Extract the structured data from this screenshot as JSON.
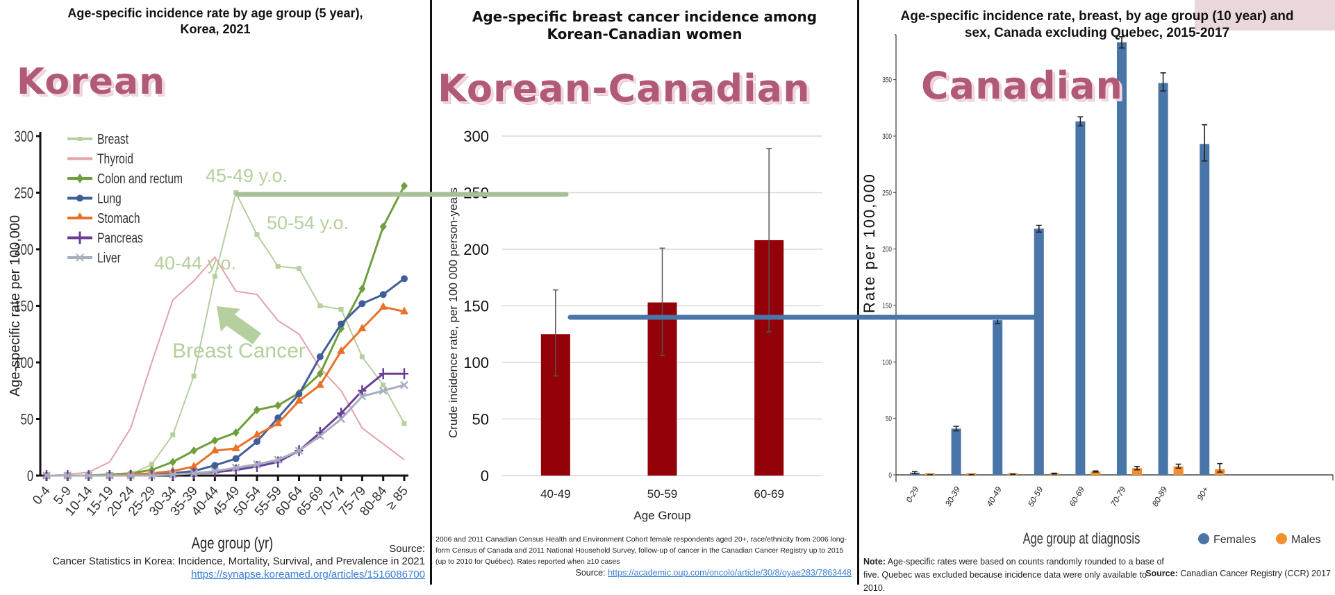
{
  "panels": {
    "korean": {
      "title_line1": "Age-specific incidence rate by age group (5 year),",
      "title_line2": "Korea, 2021",
      "big_label": "Korean",
      "source_label": "Source:",
      "source_text": "Cancer Statistics in Korea: Incidence, Mortality, Survival, and Prevalence in 2021",
      "source_link": "https://synapse.koreamed.org/articles/1516086700",
      "annotations": {
        "a1": "45-49 y.o.",
        "a2": "50-54 y.o.",
        "a3": "40-44 y.o.",
        "a4": "Breast Cancer"
      }
    },
    "korean_canadian": {
      "title_line1": "Age-specific breast cancer incidence among",
      "title_line2": "Korean-Canadian women",
      "big_label": "Korean-Canadian",
      "note": "2006 and 2011 Canadian Census Health and Environment Cohort female respondents aged 20+, race/ethnicity from 2006 long-form Census of Canada and 2011 National Household Survey, follow-up of cancer in the Canadian Cancer Registry up to 2015 (up to 2010 for Québec). Rates reported when ≥10 cases",
      "source_label": "Source:",
      "source_link": "https://academic.oup.com/oncolo/article/30/8/oyae283/7863448"
    },
    "canadian": {
      "title_line1": "Age-specific incidence rate, breast, by age group (10 year) and",
      "title_line2": "sex, Canada excluding Quebec, 2015-2017",
      "big_label": "Canadian",
      "note_label": "Note:",
      "note_text": "Age-specific rates were based on counts randomly rounded to a base of five. Quebec was excluded because incidence data were only available to 2010.",
      "source_label": "Source:",
      "source_text": "Canadian Cancer Registry (CCR) 2017"
    }
  },
  "colors": {
    "breast": "#b5cf9f",
    "thyroid": "#e3a3a8",
    "colon": "#6f9e3c",
    "lung": "#405e9a",
    "stomach": "#e8712a",
    "pancreas": "#6a3d98",
    "liver": "#a7aebe",
    "kc_bar": "#930007",
    "females": "#4a75a8",
    "males": "#f28e2b",
    "big_label": "#b05a78",
    "connector_green": "#a9bf98",
    "connector_blue": "#4a75a8"
  },
  "chart_data": [
    {
      "type": "line",
      "title": "Age-specific incidence rate by age group (5 year), Korea, 2021",
      "xlabel": "Age group (yr)",
      "ylabel": "Age-specific rate per 100,000",
      "ylim": [
        0,
        300
      ],
      "yticks": [
        0,
        50,
        100,
        150,
        200,
        250,
        300
      ],
      "legend_position": "top-left",
      "categories": [
        "0-4",
        "5-9",
        "10-14",
        "15-19",
        "20-24",
        "25-29",
        "30-34",
        "35-39",
        "40-44",
        "45-49",
        "50-54",
        "55-59",
        "60-64",
        "65-69",
        "70-74",
        "75-79",
        "80-84",
        "≥ 85"
      ],
      "series": [
        {
          "name": "Breast",
          "key": "breast",
          "marker": "square",
          "values": [
            0,
            0,
            0,
            0,
            1,
            10,
            36,
            88,
            176,
            250,
            213,
            185,
            183,
            150,
            147,
            105,
            80,
            46
          ]
        },
        {
          "name": "Thyroid",
          "key": "thyroid",
          "marker": "none",
          "values": [
            0,
            1,
            3,
            12,
            42,
            100,
            155,
            172,
            193,
            163,
            160,
            137,
            125,
            95,
            75,
            42,
            28,
            14
          ]
        },
        {
          "name": "Colon and rectum",
          "key": "colon",
          "marker": "diamond",
          "values": [
            0,
            0,
            0,
            1,
            2,
            5,
            12,
            22,
            31,
            38,
            58,
            62,
            73,
            90,
            130,
            165,
            220,
            256
          ]
        },
        {
          "name": "Lung",
          "key": "lung",
          "marker": "circle",
          "values": [
            0,
            0,
            0,
            0,
            0,
            1,
            2,
            4,
            9,
            15,
            30,
            51,
            72,
            105,
            134,
            152,
            160,
            174
          ]
        },
        {
          "name": "Stomach",
          "key": "stomach",
          "marker": "triangle",
          "values": [
            0,
            0,
            0,
            0,
            1,
            2,
            4,
            8,
            22,
            24,
            36,
            46,
            66,
            80,
            110,
            130,
            149,
            145
          ]
        },
        {
          "name": "Pancreas",
          "key": "pancreas",
          "marker": "plus",
          "values": [
            0,
            0,
            0,
            0,
            0,
            0,
            1,
            2,
            3,
            5,
            8,
            12,
            22,
            38,
            55,
            75,
            90,
            90
          ]
        },
        {
          "name": "Liver",
          "key": "liver",
          "marker": "x",
          "values": [
            0,
            0,
            0,
            0,
            0,
            0,
            1,
            2,
            4,
            7,
            10,
            14,
            22,
            35,
            50,
            70,
            75,
            80
          ]
        }
      ],
      "annotations": [
        "45-49 y.o.",
        "50-54 y.o.",
        "40-44 y.o.",
        "Breast Cancer"
      ]
    },
    {
      "type": "bar",
      "title": "Age-specific breast cancer incidence among Korean-Canadian women",
      "xlabel": "Age Group",
      "ylabel": "Crude incidence rate, per 100 000 person-years",
      "ylim": [
        0,
        300
      ],
      "yticks": [
        0,
        50,
        100,
        150,
        200,
        250,
        300
      ],
      "grid": true,
      "categories": [
        "40-49",
        "50-59",
        "60-69"
      ],
      "values": [
        125,
        153,
        208
      ],
      "error_low": [
        88,
        106,
        127
      ],
      "error_high": [
        164,
        201,
        289
      ]
    },
    {
      "type": "bar",
      "title": "Age-specific incidence rate, breast, by age group (10 year) and sex, Canada excluding Quebec, 2015-2017",
      "xlabel": "Age group at diagnosis",
      "ylabel": "Rate per 100,000",
      "ylim": [
        0,
        385
      ],
      "yticks": [
        0,
        50,
        100,
        150,
        200,
        250,
        300,
        350
      ],
      "legend_position": "bottom-right",
      "categories": [
        "0-29",
        "30-39",
        "40-49",
        "50-59",
        "60-69",
        "70-79",
        "80-89",
        "90+"
      ],
      "series": [
        {
          "name": "Females",
          "key": "females",
          "values": [
            2,
            41,
            137,
            218,
            313,
            383,
            347,
            293
          ],
          "error_low": [
            1,
            39,
            134,
            215,
            309,
            378,
            340,
            278
          ],
          "error_high": [
            3,
            43,
            140,
            221,
            317,
            388,
            356,
            310
          ]
        },
        {
          "name": "Males",
          "key": "males",
          "values": [
            0,
            0,
            0.5,
            1,
            3,
            6,
            7.5,
            5
          ],
          "error_low": [
            0,
            0,
            0.3,
            0.7,
            2.5,
            4.5,
            6,
            2.5
          ],
          "error_high": [
            0.2,
            0.2,
            0.8,
            1.5,
            3.5,
            7.5,
            9.5,
            10
          ]
        }
      ]
    }
  ]
}
